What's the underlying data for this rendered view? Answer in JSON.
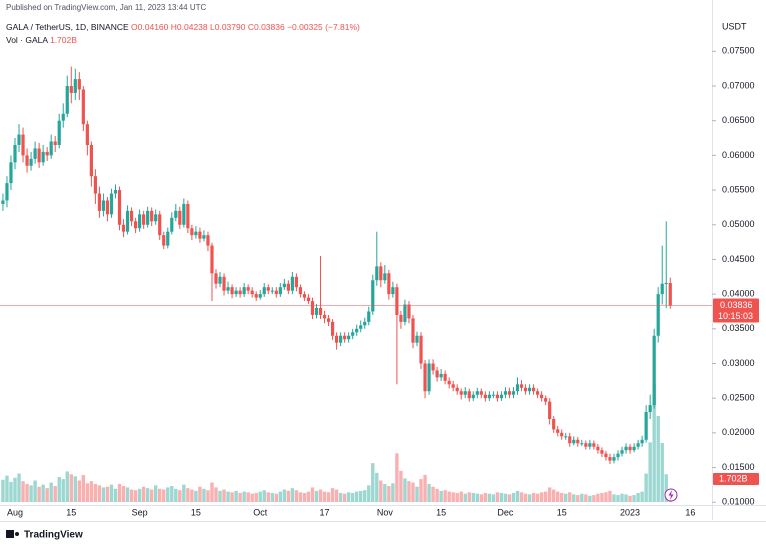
{
  "header": {
    "published": "Published on TradingView.com, Jan 11, 2023 13:44 UTC",
    "footer_brand": "TradingView"
  },
  "chart_data": {
    "type": "candlestick",
    "symbol": "GALA / TetherUS, 1D, BINANCE",
    "ohlc_legend": [
      "O0.04160",
      "H0.04238",
      "L0.03790",
      "C0.03836",
      "−0.00325 (−7.81%)"
    ],
    "volume_name": "Vol · GALA",
    "volume_label": "1.702B",
    "y_axis_unit": "USDT",
    "last_price_label": "0.03836",
    "countdown": "10:15:03",
    "up_color": "#26a69a",
    "down_color": "#ef5350",
    "ylim": [
      0.0096,
      0.0824
    ],
    "yticks": [
      {
        "value": 0.075,
        "label": "0.07500"
      },
      {
        "value": 0.07,
        "label": "0.07000"
      },
      {
        "value": 0.065,
        "label": "0.06500"
      },
      {
        "value": 0.06,
        "label": "0.06000"
      },
      {
        "value": 0.055,
        "label": "0.05500"
      },
      {
        "value": 0.05,
        "label": "0.05000"
      },
      {
        "value": 0.045,
        "label": "0.04500"
      },
      {
        "value": 0.04,
        "label": "0.04000"
      },
      {
        "value": 0.035,
        "label": "0.03500"
      },
      {
        "value": 0.03,
        "label": "0.03000"
      },
      {
        "value": 0.025,
        "label": "0.02500"
      },
      {
        "value": 0.02,
        "label": "0.02000"
      },
      {
        "value": 0.015,
        "label": "0.01500"
      },
      {
        "value": 0.01,
        "label": "0.01000"
      }
    ],
    "categories": [
      null,
      null,
      null,
      "Aug",
      null,
      null,
      null,
      null,
      null,
      null,
      null,
      null,
      null,
      null,
      null,
      null,
      null,
      "15",
      null,
      null,
      null,
      null,
      null,
      null,
      null,
      null,
      null,
      null,
      null,
      null,
      null,
      null,
      null,
      null,
      "Sep",
      null,
      null,
      null,
      null,
      null,
      null,
      null,
      null,
      null,
      null,
      null,
      null,
      null,
      "15",
      null,
      null,
      null,
      null,
      null,
      null,
      null,
      null,
      null,
      null,
      null,
      null,
      null,
      null,
      null,
      "Oct",
      null,
      null,
      null,
      null,
      null,
      null,
      null,
      null,
      null,
      null,
      null,
      null,
      null,
      null,
      null,
      "17",
      null,
      null,
      null,
      null,
      null,
      null,
      null,
      null,
      null,
      null,
      null,
      null,
      null,
      null,
      "Nov",
      null,
      null,
      null,
      null,
      null,
      null,
      null,
      null,
      null,
      null,
      null,
      null,
      null,
      "15",
      null,
      null,
      null,
      null,
      null,
      null,
      null,
      null,
      null,
      null,
      null,
      null,
      null,
      null,
      null,
      "Dec",
      null,
      null,
      null,
      null,
      null,
      null,
      null,
      null,
      null,
      null,
      null,
      null,
      null,
      "15",
      null,
      null,
      null,
      null,
      null,
      null,
      null,
      null,
      null,
      null,
      null,
      null,
      null,
      null,
      null,
      null,
      "2023",
      null,
      null,
      null,
      null,
      null,
      null,
      null,
      null,
      null,
      null,
      null,
      null,
      null,
      null,
      "16"
    ],
    "open": [
      0.053,
      0.0535,
      0.056,
      0.059,
      0.0615,
      0.063,
      0.06,
      0.0585,
      0.0595,
      0.061,
      0.059,
      0.0605,
      0.06,
      0.062,
      0.0615,
      0.065,
      0.066,
      0.07,
      0.069,
      0.071,
      0.0695,
      0.0645,
      0.0615,
      0.057,
      0.0545,
      0.052,
      0.0535,
      0.0515,
      0.0545,
      0.055,
      0.05,
      0.049,
      0.052,
      0.0505,
      0.0495,
      0.0515,
      0.05,
      0.052,
      0.0505,
      0.0515,
      0.0485,
      0.047,
      0.049,
      0.051,
      0.052,
      0.05,
      0.053,
      0.0495,
      0.0485,
      0.049,
      0.048,
      0.0485,
      0.047,
      0.043,
      0.0415,
      0.0425,
      0.0405,
      0.041,
      0.04,
      0.0405,
      0.04,
      0.041,
      0.0405,
      0.04,
      0.0395,
      0.04,
      0.041,
      0.0405,
      0.0405,
      0.04,
      0.041,
      0.0415,
      0.0405,
      0.0425,
      0.041,
      0.04,
      0.0395,
      0.039,
      0.037,
      0.038,
      0.037,
      0.0365,
      0.036,
      0.034,
      0.033,
      0.034,
      0.0335,
      0.034,
      0.0345,
      0.035,
      0.0355,
      0.036,
      0.0375,
      0.042,
      0.044,
      0.042,
      0.043,
      0.04,
      0.041,
      0.037,
      0.036,
      0.0385,
      0.0365,
      0.033,
      0.034,
      0.03,
      0.026,
      0.03,
      0.029,
      0.028,
      0.0285,
      0.0275,
      0.027,
      0.0265,
      0.026,
      0.0255,
      0.026,
      0.025,
      0.0255,
      0.026,
      0.0255,
      0.025,
      0.0255,
      0.0255,
      0.025,
      0.0255,
      0.026,
      0.0255,
      0.026,
      0.027,
      0.0265,
      0.026,
      0.0265,
      0.026,
      0.0255,
      0.025,
      0.0245,
      0.022,
      0.0205,
      0.02,
      0.0195,
      0.0195,
      0.0185,
      0.019,
      0.0185,
      0.0185,
      0.018,
      0.0185,
      0.018,
      0.0175,
      0.017,
      0.0165,
      0.016,
      0.0165,
      0.017,
      0.0175,
      0.018,
      0.0175,
      0.018,
      0.0185,
      0.019,
      0.023,
      0.024,
      0.034,
      0.04,
      0.0415,
      0.0416,
      null,
      null,
      null,
      null,
      null
    ],
    "high": [
      0.0545,
      0.057,
      0.06,
      0.0625,
      0.0645,
      0.064,
      0.061,
      0.0605,
      0.062,
      0.0618,
      0.0615,
      0.0612,
      0.063,
      0.0628,
      0.066,
      0.0675,
      0.0715,
      0.0728,
      0.0725,
      0.072,
      0.07,
      0.065,
      0.062,
      0.058,
      0.0555,
      0.0545,
      0.054,
      0.0552,
      0.0558,
      0.0555,
      0.0508,
      0.0528,
      0.0525,
      0.051,
      0.0522,
      0.052,
      0.0526,
      0.0525,
      0.0522,
      0.052,
      0.049,
      0.0496,
      0.0518,
      0.053,
      0.0526,
      0.0538,
      0.0535,
      0.05,
      0.0498,
      0.0496,
      0.0492,
      0.049,
      0.0474,
      0.0436,
      0.0432,
      0.043,
      0.0418,
      0.0414,
      0.041,
      0.041,
      0.0416,
      0.0414,
      0.041,
      0.0404,
      0.0406,
      0.0416,
      0.0414,
      0.041,
      0.041,
      0.0416,
      0.0422,
      0.042,
      0.0432,
      0.043,
      0.0414,
      0.0404,
      0.04,
      0.0395,
      0.0386,
      0.0455,
      0.0376,
      0.037,
      0.0364,
      0.0345,
      0.0345,
      0.0345,
      0.0345,
      0.035,
      0.0356,
      0.0362,
      0.0366,
      0.0382,
      0.0428,
      0.049,
      0.0446,
      0.0442,
      0.0435,
      0.0418,
      0.0415,
      0.0376,
      0.0392,
      0.039,
      0.037,
      0.0346,
      0.0345,
      0.0305,
      0.0306,
      0.0306,
      0.0295,
      0.0292,
      0.029,
      0.028,
      0.0275,
      0.027,
      0.0264,
      0.0266,
      0.0264,
      0.026,
      0.0265,
      0.0264,
      0.026,
      0.026,
      0.026,
      0.026,
      0.026,
      0.0266,
      0.0265,
      0.0266,
      0.028,
      0.0276,
      0.027,
      0.027,
      0.027,
      0.0264,
      0.026,
      0.0254,
      0.025,
      0.0224,
      0.021,
      0.0205,
      0.02,
      0.02,
      0.0195,
      0.0194,
      0.019,
      0.0189,
      0.019,
      0.0189,
      0.0184,
      0.0179,
      0.0174,
      0.017,
      0.017,
      0.0175,
      0.018,
      0.0185,
      0.0184,
      0.0185,
      0.019,
      0.0196,
      0.024,
      0.0255,
      0.035,
      0.041,
      0.047,
      0.0505,
      0.04238,
      null,
      null,
      null,
      null,
      null
    ],
    "low": [
      0.052,
      0.0525,
      0.055,
      0.058,
      0.0605,
      0.059,
      0.0575,
      0.0578,
      0.0588,
      0.0582,
      0.0585,
      0.0592,
      0.0595,
      0.0605,
      0.061,
      0.064,
      0.0655,
      0.0675,
      0.068,
      0.068,
      0.0635,
      0.06,
      0.0555,
      0.053,
      0.051,
      0.0512,
      0.0505,
      0.051,
      0.0538,
      0.0492,
      0.0482,
      0.0486,
      0.0498,
      0.0488,
      0.049,
      0.0494,
      0.0496,
      0.0498,
      0.05,
      0.0478,
      0.0465,
      0.0466,
      0.0486,
      0.0505,
      0.0494,
      0.0496,
      0.0488,
      0.0478,
      0.048,
      0.0474,
      0.0476,
      0.0462,
      0.039,
      0.0408,
      0.041,
      0.0398,
      0.04,
      0.0394,
      0.0396,
      0.0395,
      0.0396,
      0.04,
      0.0395,
      0.039,
      0.0392,
      0.0396,
      0.04,
      0.04,
      0.0395,
      0.0396,
      0.0406,
      0.04,
      0.04,
      0.0404,
      0.0395,
      0.039,
      0.0386,
      0.0364,
      0.0365,
      0.0364,
      0.0358,
      0.0354,
      0.0334,
      0.032,
      0.0325,
      0.033,
      0.033,
      0.0335,
      0.034,
      0.0345,
      0.035,
      0.0355,
      0.037,
      0.0412,
      0.041,
      0.0415,
      0.0392,
      0.0395,
      0.027,
      0.035,
      0.0355,
      0.0358,
      0.0322,
      0.0325,
      0.0292,
      0.025,
      0.0255,
      0.0284,
      0.0274,
      0.0275,
      0.027,
      0.0264,
      0.026,
      0.0255,
      0.0248,
      0.025,
      0.0245,
      0.0246,
      0.025,
      0.025,
      0.0245,
      0.0246,
      0.025,
      0.0245,
      0.0246,
      0.025,
      0.025,
      0.025,
      0.0255,
      0.026,
      0.0255,
      0.0255,
      0.0255,
      0.025,
      0.0245,
      0.024,
      0.0212,
      0.02,
      0.0195,
      0.019,
      0.019,
      0.018,
      0.0182,
      0.018,
      0.0181,
      0.0176,
      0.0176,
      0.0176,
      0.017,
      0.0165,
      0.016,
      0.0155,
      0.0156,
      0.016,
      0.0166,
      0.017,
      0.017,
      0.0172,
      0.0176,
      0.018,
      0.0186,
      0.022,
      0.0235,
      0.033,
      0.0385,
      0.038,
      0.0379,
      null,
      null,
      null,
      null,
      null
    ],
    "close": [
      0.0535,
      0.056,
      0.059,
      0.0615,
      0.063,
      0.06,
      0.0585,
      0.0595,
      0.061,
      0.059,
      0.0605,
      0.06,
      0.062,
      0.0615,
      0.065,
      0.066,
      0.07,
      0.069,
      0.071,
      0.0695,
      0.0645,
      0.0615,
      0.057,
      0.0545,
      0.052,
      0.0535,
      0.0515,
      0.0545,
      0.055,
      0.05,
      0.049,
      0.052,
      0.0505,
      0.0495,
      0.0515,
      0.05,
      0.052,
      0.0505,
      0.0515,
      0.0485,
      0.047,
      0.049,
      0.051,
      0.052,
      0.05,
      0.053,
      0.0495,
      0.0485,
      0.049,
      0.048,
      0.0485,
      0.047,
      0.043,
      0.0415,
      0.0425,
      0.0405,
      0.041,
      0.04,
      0.0405,
      0.04,
      0.041,
      0.0405,
      0.04,
      0.0395,
      0.04,
      0.041,
      0.0405,
      0.0405,
      0.04,
      0.041,
      0.0415,
      0.0405,
      0.0425,
      0.041,
      0.04,
      0.0395,
      0.039,
      0.037,
      0.038,
      0.037,
      0.0365,
      0.036,
      0.034,
      0.033,
      0.034,
      0.0335,
      0.034,
      0.0345,
      0.035,
      0.0355,
      0.036,
      0.0375,
      0.042,
      0.044,
      0.042,
      0.043,
      0.04,
      0.041,
      0.037,
      0.036,
      0.0385,
      0.0365,
      0.033,
      0.034,
      0.03,
      0.026,
      0.03,
      0.029,
      0.028,
      0.0285,
      0.0275,
      0.027,
      0.0265,
      0.026,
      0.0255,
      0.026,
      0.025,
      0.0255,
      0.026,
      0.0255,
      0.025,
      0.0255,
      0.0255,
      0.025,
      0.0255,
      0.026,
      0.0255,
      0.026,
      0.027,
      0.0265,
      0.026,
      0.0265,
      0.026,
      0.0255,
      0.025,
      0.0245,
      0.022,
      0.0205,
      0.02,
      0.0195,
      0.0195,
      0.0185,
      0.019,
      0.0185,
      0.0185,
      0.018,
      0.0185,
      0.018,
      0.0175,
      0.017,
      0.0165,
      0.016,
      0.0165,
      0.017,
      0.0175,
      0.018,
      0.0175,
      0.018,
      0.0185,
      0.019,
      0.023,
      0.024,
      0.034,
      0.04,
      0.0415,
      0.0416,
      0.03836,
      null,
      null,
      null,
      null,
      null
    ],
    "volume": [
      3.2,
      3.8,
      2.9,
      3.5,
      4.1,
      3.0,
      2.6,
      2.4,
      3.1,
      2.2,
      2.5,
      2.0,
      2.8,
      2.3,
      3.6,
      3.3,
      4.4,
      4.0,
      3.7,
      3.1,
      3.9,
      2.7,
      3.0,
      2.6,
      2.4,
      2.1,
      2.2,
      2.5,
      1.9,
      2.6,
      2.3,
      2.1,
      1.8,
      1.7,
      1.9,
      2.2,
      2.0,
      1.8,
      2.4,
      1.9,
      1.8,
      2.1,
      2.3,
      1.9,
      1.7,
      2.5,
      2.0,
      1.8,
      1.6,
      2.2,
      1.9,
      1.7,
      2.8,
      2.1,
      1.6,
      1.8,
      1.5,
      1.4,
      1.6,
      1.3,
      1.5,
      1.4,
      1.2,
      1.3,
      1.5,
      1.7,
      1.4,
      1.3,
      1.2,
      1.5,
      1.8,
      1.6,
      2.0,
      1.7,
      1.4,
      1.3,
      1.5,
      2.1,
      1.6,
      1.8,
      1.5,
      1.4,
      2.0,
      1.8,
      1.3,
      1.2,
      1.4,
      1.3,
      1.5,
      1.6,
      1.7,
      2.4,
      5.6,
      4.2,
      3.1,
      2.6,
      2.3,
      2.7,
      7.0,
      4.5,
      3.4,
      3.0,
      2.8,
      2.2,
      3.3,
      3.9,
      2.6,
      2.2,
      1.9,
      1.6,
      1.7,
      1.5,
      1.4,
      1.3,
      1.5,
      1.2,
      1.4,
      1.3,
      1.2,
      1.1,
      1.3,
      1.2,
      1.1,
      1.4,
      1.3,
      1.2,
      1.1,
      1.3,
      1.6,
      1.4,
      1.2,
      1.1,
      1.3,
      1.2,
      1.4,
      1.5,
      2.1,
      1.8,
      1.5,
      1.3,
      1.2,
      1.4,
      1.1,
      1.0,
      1.2,
      1.1,
      0.9,
      1.0,
      1.2,
      1.3,
      1.4,
      1.6,
      1.1,
      1.0,
      1.2,
      1.1,
      0.9,
      1.0,
      1.3,
      1.5,
      4.1,
      8.6,
      17.0,
      12.4,
      8.5,
      4.0,
      1.702,
      null,
      null,
      null,
      null,
      null
    ]
  }
}
